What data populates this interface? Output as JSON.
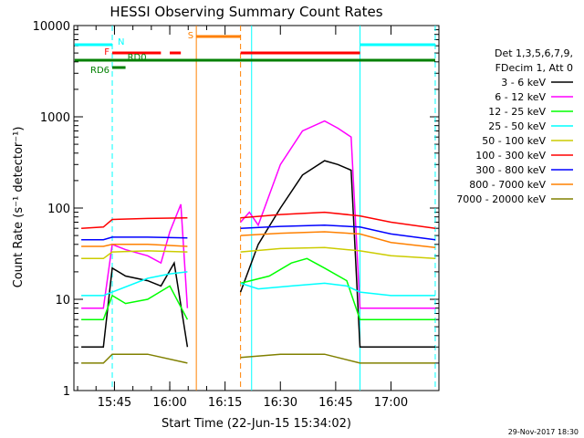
{
  "chart_data": {
    "type": "line",
    "title": "HESSI Observing Summary Count Rates",
    "xlabel": "Start Time (22-Jun-15 15:34:02)",
    "ylabel": "Count Rate (s⁻¹ detector⁻¹)",
    "yscale": "log",
    "ylim": [
      1,
      10000
    ],
    "xlim": [
      "15:34",
      "17:13"
    ],
    "x_ticks": [
      "15:45",
      "16:00",
      "16:15",
      "16:30",
      "16:45",
      "17:00"
    ],
    "y_ticks": [
      "1",
      "10",
      "100",
      "1000",
      "10000"
    ],
    "footer_date": "29-Nov-2017 18:30",
    "legend_header": [
      "Det 1,3,5,6,7,9,",
      "FDecim 1, Att 0"
    ],
    "legend_placement": "right",
    "series": [
      {
        "name": "3 - 6 keV",
        "color": "#000000",
        "values": [
          [
            15.6,
            3
          ],
          [
            15.7,
            3
          ],
          [
            15.74,
            22
          ],
          [
            15.8,
            18
          ],
          [
            15.9,
            16
          ],
          [
            15.96,
            14
          ],
          [
            16.02,
            25
          ],
          [
            16.08,
            3
          ],
          [
            16.32,
            12
          ],
          [
            16.4,
            40
          ],
          [
            16.5,
            100
          ],
          [
            16.6,
            230
          ],
          [
            16.7,
            330
          ],
          [
            16.76,
            300
          ],
          [
            16.82,
            260
          ],
          [
            16.86,
            3
          ],
          [
            17.0,
            3
          ],
          [
            17.2,
            3
          ]
        ]
      },
      {
        "name": "6 - 12 keV",
        "color": "#ff00ff",
        "values": [
          [
            15.6,
            8
          ],
          [
            15.7,
            8
          ],
          [
            15.74,
            40
          ],
          [
            15.8,
            35
          ],
          [
            15.9,
            30
          ],
          [
            15.96,
            25
          ],
          [
            16.0,
            55
          ],
          [
            16.05,
            110
          ],
          [
            16.08,
            8
          ],
          [
            16.32,
            70
          ],
          [
            16.36,
            90
          ],
          [
            16.4,
            65
          ],
          [
            16.5,
            300
          ],
          [
            16.6,
            700
          ],
          [
            16.7,
            900
          ],
          [
            16.76,
            750
          ],
          [
            16.82,
            600
          ],
          [
            16.86,
            8
          ],
          [
            17.0,
            8
          ],
          [
            17.2,
            8
          ]
        ]
      },
      {
        "name": "12 - 25 keV",
        "color": "#00ff00",
        "values": [
          [
            15.6,
            6
          ],
          [
            15.7,
            6
          ],
          [
            15.74,
            11
          ],
          [
            15.8,
            9
          ],
          [
            15.9,
            10
          ],
          [
            16.0,
            14
          ],
          [
            16.08,
            6
          ],
          [
            16.32,
            15
          ],
          [
            16.45,
            18
          ],
          [
            16.55,
            25
          ],
          [
            16.62,
            28
          ],
          [
            16.7,
            22
          ],
          [
            16.8,
            16
          ],
          [
            16.86,
            6
          ],
          [
            17.0,
            6
          ],
          [
            17.2,
            6
          ]
        ]
      },
      {
        "name": "25 - 50 keV",
        "color": "#00ffff",
        "values": [
          [
            15.6,
            11
          ],
          [
            15.7,
            11
          ],
          [
            15.74,
            12
          ],
          [
            15.9,
            17
          ],
          [
            16.0,
            19
          ],
          [
            16.08,
            20
          ],
          [
            16.32,
            15
          ],
          [
            16.4,
            13
          ],
          [
            16.55,
            14
          ],
          [
            16.7,
            15
          ],
          [
            16.8,
            14
          ],
          [
            16.86,
            12
          ],
          [
            17.0,
            11
          ],
          [
            17.2,
            11
          ]
        ]
      },
      {
        "name": "50 - 100 keV",
        "color": "#cccc00",
        "values": [
          [
            15.6,
            28
          ],
          [
            15.7,
            28
          ],
          [
            15.74,
            33
          ],
          [
            15.9,
            34
          ],
          [
            16.08,
            33
          ],
          [
            16.32,
            33
          ],
          [
            16.5,
            36
          ],
          [
            16.7,
            37
          ],
          [
            16.86,
            34
          ],
          [
            17.0,
            30
          ],
          [
            17.2,
            28
          ]
        ]
      },
      {
        "name": "100 - 300 keV",
        "color": "#ff0000",
        "values": [
          [
            15.6,
            60
          ],
          [
            15.7,
            62
          ],
          [
            15.74,
            75
          ],
          [
            15.9,
            77
          ],
          [
            16.08,
            78
          ],
          [
            16.32,
            78
          ],
          [
            16.5,
            85
          ],
          [
            16.7,
            90
          ],
          [
            16.86,
            82
          ],
          [
            17.0,
            70
          ],
          [
            17.2,
            60
          ]
        ]
      },
      {
        "name": "300 - 800 keV",
        "color": "#0000ff",
        "values": [
          [
            15.6,
            45
          ],
          [
            15.7,
            45
          ],
          [
            15.74,
            48
          ],
          [
            15.9,
            48
          ],
          [
            16.08,
            47
          ],
          [
            16.32,
            60
          ],
          [
            16.5,
            63
          ],
          [
            16.7,
            65
          ],
          [
            16.86,
            62
          ],
          [
            17.0,
            52
          ],
          [
            17.2,
            45
          ]
        ]
      },
      {
        "name": "800 - 7000 keV",
        "color": "#ff8000",
        "values": [
          [
            15.6,
            38
          ],
          [
            15.7,
            38
          ],
          [
            15.74,
            40
          ],
          [
            15.9,
            40
          ],
          [
            16.08,
            38
          ],
          [
            16.32,
            50
          ],
          [
            16.5,
            53
          ],
          [
            16.7,
            55
          ],
          [
            16.86,
            52
          ],
          [
            17.0,
            42
          ],
          [
            17.2,
            37
          ]
        ]
      },
      {
        "name": "7000 - 20000 keV",
        "color": "#808000",
        "values": [
          [
            15.6,
            2
          ],
          [
            15.7,
            2
          ],
          [
            15.74,
            2.5
          ],
          [
            15.9,
            2.5
          ],
          [
            16.08,
            2
          ],
          [
            16.32,
            2.3
          ],
          [
            16.5,
            2.5
          ],
          [
            16.7,
            2.5
          ],
          [
            16.86,
            2
          ],
          [
            17.0,
            2
          ],
          [
            17.2,
            2
          ]
        ]
      }
    ],
    "flags": [
      {
        "label": "N",
        "color": "#00ffff",
        "segments": [
          [
            15.57,
            15.74
          ],
          [
            16.86,
            17.2
          ]
        ]
      },
      {
        "label": "F",
        "color": "#ff0000",
        "segments": [
          [
            15.74,
            15.96
          ],
          [
            16.0,
            16.05
          ],
          [
            16.32,
            16.86
          ]
        ]
      },
      {
        "label": "RD0",
        "color": "#008000",
        "segments": [
          [
            15.57,
            17.2
          ]
        ]
      },
      {
        "label": "RD6",
        "color": "#008000",
        "segments": [
          [
            15.74,
            15.8
          ]
        ]
      },
      {
        "label": "S",
        "color": "#ff8000",
        "segments": [
          [
            16.12,
            16.32
          ]
        ]
      }
    ]
  }
}
